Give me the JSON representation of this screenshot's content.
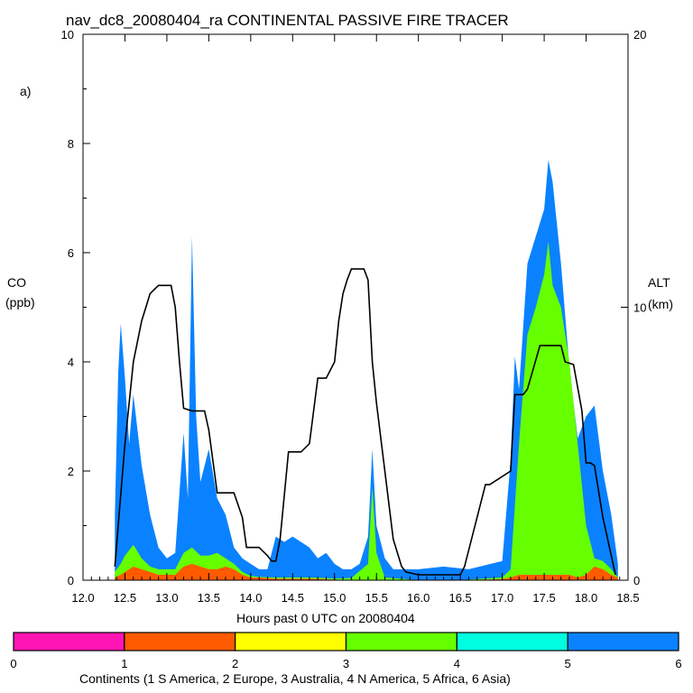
{
  "chart_data": {
    "type": "area",
    "title": "nav_dc8_20080404_ra CONTINENTAL PASSIVE FIRE TRACER",
    "panel_label": "a)",
    "xlabel": "Hours past 0 UTC on 20080404",
    "ylabel": "CO",
    "ylabel_unit": "(ppb)",
    "y2label": "ALT",
    "y2label_unit": "(km)",
    "xlim": [
      12.0,
      18.5
    ],
    "ylim": [
      0,
      10
    ],
    "y2lim": [
      0,
      20
    ],
    "x_ticks": [
      "12.0",
      "12.5",
      "13.0",
      "13.5",
      "14.0",
      "14.5",
      "15.0",
      "15.5",
      "16.0",
      "16.5",
      "17.0",
      "17.5",
      "18.0",
      "18.5"
    ],
    "y_ticks": [
      "0",
      "2",
      "4",
      "6",
      "8",
      "10"
    ],
    "y2_ticks": [
      "0",
      "10",
      "20"
    ],
    "colorbar": {
      "label": "Continents (1 S America, 2 Europe, 3 Australia, 4 N America, 5 Africa, 6 Asia)",
      "ticks": [
        "0",
        "1",
        "2",
        "3",
        "4",
        "5",
        "6"
      ],
      "colors": [
        "#ff14b4",
        "#ff5a00",
        "#ffff00",
        "#66ff00",
        "#00ffe0",
        "#0a82ff"
      ]
    },
    "series": [
      {
        "name": "1 S America",
        "color": "#ff5a00",
        "x": [
          12.38,
          12.45,
          12.5,
          12.6,
          12.7,
          12.8,
          12.9,
          13.0,
          13.1,
          13.2,
          13.3,
          13.4,
          13.5,
          13.6,
          13.7,
          13.8,
          13.9,
          14.0,
          14.1,
          14.3,
          14.5,
          14.7,
          14.9,
          15.0,
          15.2,
          15.5,
          16.0,
          16.5,
          17.0,
          17.1,
          17.2,
          17.3,
          17.5,
          17.7,
          17.8,
          17.9,
          18.0,
          18.1,
          18.2,
          18.3,
          18.38
        ],
        "y": [
          0.05,
          0.1,
          0.15,
          0.25,
          0.2,
          0.15,
          0.1,
          0.1,
          0.1,
          0.25,
          0.3,
          0.25,
          0.2,
          0.2,
          0.25,
          0.2,
          0.1,
          0.05,
          0.05,
          0.03,
          0.03,
          0.03,
          0.02,
          0.01,
          0.0,
          0.0,
          0.0,
          0.0,
          0.02,
          0.05,
          0.1,
          0.1,
          0.1,
          0.1,
          0.1,
          0.05,
          0.1,
          0.25,
          0.2,
          0.1,
          0.05
        ]
      },
      {
        "name": "4 N America",
        "color": "#66ff00",
        "x": [
          12.38,
          12.45,
          12.5,
          12.6,
          12.7,
          12.8,
          12.9,
          13.0,
          13.1,
          13.2,
          13.3,
          13.4,
          13.5,
          13.6,
          13.7,
          13.8,
          13.9,
          14.0,
          14.1,
          14.3,
          14.5,
          14.7,
          14.9,
          15.0,
          15.2,
          15.4,
          15.45,
          15.5,
          15.6,
          16.0,
          16.5,
          17.0,
          17.1,
          17.2,
          17.3,
          17.4,
          17.5,
          17.55,
          17.6,
          17.7,
          17.8,
          17.9,
          18.0,
          18.1,
          18.2,
          18.3,
          18.38
        ],
        "y": [
          0.15,
          0.3,
          0.45,
          0.65,
          0.4,
          0.25,
          0.2,
          0.2,
          0.2,
          0.5,
          0.6,
          0.45,
          0.45,
          0.5,
          0.4,
          0.3,
          0.15,
          0.08,
          0.06,
          0.05,
          0.05,
          0.05,
          0.04,
          0.03,
          0.04,
          0.3,
          1.7,
          0.5,
          0.05,
          0.0,
          0.0,
          0.05,
          0.2,
          2.5,
          4.5,
          5.0,
          5.6,
          6.2,
          5.4,
          5.0,
          4.0,
          2.5,
          1.0,
          0.4,
          0.35,
          0.2,
          0.05
        ]
      },
      {
        "name": "6 Asia",
        "color": "#0a82ff",
        "x": [
          12.38,
          12.42,
          12.45,
          12.5,
          12.55,
          12.6,
          12.7,
          12.8,
          12.9,
          13.0,
          13.1,
          13.2,
          13.25,
          13.3,
          13.35,
          13.4,
          13.5,
          13.6,
          13.7,
          13.8,
          13.9,
          14.0,
          14.1,
          14.2,
          14.3,
          14.4,
          14.5,
          14.6,
          14.7,
          14.8,
          14.9,
          15.0,
          15.1,
          15.2,
          15.3,
          15.4,
          15.45,
          15.5,
          15.6,
          15.7,
          16.0,
          16.3,
          16.6,
          17.0,
          17.1,
          17.15,
          17.2,
          17.3,
          17.4,
          17.5,
          17.55,
          17.6,
          17.7,
          17.8,
          17.9,
          18.0,
          18.1,
          18.2,
          18.3,
          18.38
        ],
        "y": [
          1.2,
          3.8,
          4.7,
          3.7,
          2.5,
          3.4,
          2.1,
          1.2,
          0.6,
          0.4,
          0.5,
          2.7,
          1.5,
          6.3,
          3.0,
          1.8,
          2.4,
          1.5,
          1.2,
          0.6,
          0.4,
          0.3,
          0.2,
          0.2,
          0.8,
          0.7,
          0.8,
          0.7,
          0.6,
          0.4,
          0.5,
          0.3,
          0.2,
          0.2,
          0.3,
          0.8,
          2.4,
          1.0,
          0.4,
          0.2,
          0.2,
          0.25,
          0.2,
          0.35,
          2.2,
          4.1,
          3.5,
          5.8,
          6.3,
          6.8,
          7.7,
          7.3,
          5.8,
          3.9,
          2.6,
          3.0,
          3.2,
          2.0,
          1.2,
          0.3
        ]
      }
    ],
    "altitude": {
      "name": "ALT (km)",
      "color": "#000000",
      "x": [
        12.38,
        12.42,
        12.5,
        12.6,
        12.7,
        12.75,
        12.8,
        12.9,
        13.05,
        13.1,
        13.15,
        13.2,
        13.3,
        13.45,
        13.5,
        13.6,
        13.65,
        13.8,
        13.9,
        13.95,
        14.0,
        14.1,
        14.2,
        14.25,
        14.3,
        14.35,
        14.45,
        14.6,
        14.7,
        14.8,
        14.9,
        15.0,
        15.05,
        15.1,
        15.15,
        15.2,
        15.35,
        15.4,
        15.45,
        15.5,
        15.6,
        15.7,
        15.8,
        15.85,
        16.0,
        16.5,
        16.55,
        16.8,
        16.85,
        17.1,
        17.15,
        17.25,
        17.3,
        17.45,
        17.6,
        17.7,
        17.75,
        17.85,
        17.95,
        18.0,
        18.05,
        18.1,
        18.2,
        18.35
      ],
      "y": [
        0.5,
        2.0,
        5.0,
        8.0,
        9.5,
        10.0,
        10.5,
        10.8,
        10.8,
        10.0,
        8.0,
        6.3,
        6.2,
        6.2,
        5.5,
        3.2,
        3.2,
        3.2,
        2.3,
        1.2,
        1.2,
        1.2,
        0.9,
        0.7,
        0.7,
        1.5,
        4.7,
        4.7,
        5.0,
        7.4,
        7.4,
        8.0,
        9.5,
        10.5,
        11.0,
        11.4,
        11.4,
        11.0,
        8.0,
        6.5,
        4.0,
        1.5,
        0.5,
        0.3,
        0.2,
        0.2,
        0.5,
        3.5,
        3.5,
        4.0,
        6.8,
        6.8,
        7.0,
        8.6,
        8.6,
        8.6,
        8.0,
        7.9,
        6.2,
        4.3,
        4.3,
        4.2,
        2.3,
        0.2
      ]
    }
  }
}
